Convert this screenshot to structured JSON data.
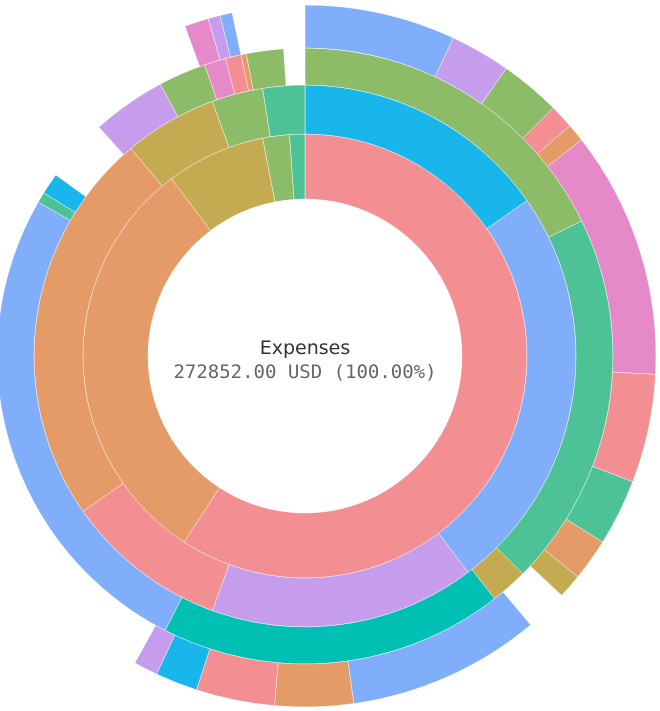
{
  "chart_data": {
    "type": "sunburst",
    "center": {
      "label": "Expenses",
      "value_text": "272852.00 USD (100.00%)"
    },
    "total": 272852.0,
    "unit": "USD",
    "rings": [
      {
        "level": 1,
        "segments": [
          {
            "start_deg": 0,
            "end_deg": 213,
            "color": "#f38e92"
          },
          {
            "start_deg": 213,
            "end_deg": 323,
            "color": "#e59b68"
          },
          {
            "start_deg": 323,
            "end_deg": 349,
            "color": "#c4aa51"
          },
          {
            "start_deg": 349,
            "end_deg": 356,
            "color": "#8dbc68"
          },
          {
            "start_deg": 356,
            "end_deg": 360,
            "color": "#4cc296"
          }
        ]
      },
      {
        "level": 2,
        "segments": [
          {
            "start_deg": 0,
            "end_deg": 55,
            "color": "#18b6ea"
          },
          {
            "start_deg": 55,
            "end_deg": 143,
            "color": "#81aefa"
          },
          {
            "start_deg": 143,
            "end_deg": 200,
            "color": "#c69ded"
          },
          {
            "start_deg": 200,
            "end_deg": 235,
            "color": "#f38e92"
          },
          {
            "start_deg": 235,
            "end_deg": 320,
            "color": "#e59b68"
          },
          {
            "start_deg": 320,
            "end_deg": 340,
            "color": "#c4aa51"
          },
          {
            "start_deg": 340,
            "end_deg": 351,
            "color": "#8dbc68"
          },
          {
            "start_deg": 351,
            "end_deg": 360,
            "color": "#4cc296"
          }
        ]
      },
      {
        "level": 3,
        "segments": [
          {
            "start_deg": 0,
            "end_deg": 64,
            "color": "#8dbc68"
          },
          {
            "start_deg": 64,
            "end_deg": 135,
            "color": "#4cc296"
          },
          {
            "start_deg": 135,
            "end_deg": 142,
            "color": "#c4aa51"
          },
          {
            "start_deg": 142,
            "end_deg": 207,
            "color": "#00c0b4"
          },
          {
            "start_deg": 207,
            "end_deg": 300,
            "color": "#81aefa"
          },
          {
            "start_deg": 300,
            "end_deg": 302,
            "color": "#4cc296"
          },
          {
            "start_deg": 302,
            "end_deg": 306,
            "color": "#18b6ea"
          },
          {
            "start_deg": 318,
            "end_deg": 332,
            "color": "#c69ded"
          },
          {
            "start_deg": 332,
            "end_deg": 341,
            "color": "#8dbc68"
          },
          {
            "start_deg": 341,
            "end_deg": 345,
            "color": "#e689c8"
          },
          {
            "start_deg": 345,
            "end_deg": 348,
            "color": "#f38e92"
          },
          {
            "start_deg": 348,
            "end_deg": 349,
            "color": "#e59b68"
          },
          {
            "start_deg": 349,
            "end_deg": 356,
            "color": "#8dbc68"
          }
        ]
      },
      {
        "level": 4,
        "segments": [
          {
            "start_deg": 0,
            "end_deg": 25,
            "color": "#81aefa"
          },
          {
            "start_deg": 25,
            "end_deg": 35,
            "color": "#c69ded"
          },
          {
            "start_deg": 35,
            "end_deg": 45,
            "color": "#8dbc68"
          },
          {
            "start_deg": 45,
            "end_deg": 49,
            "color": "#f38e92"
          },
          {
            "start_deg": 49,
            "end_deg": 52,
            "color": "#e59b68"
          },
          {
            "start_deg": 52,
            "end_deg": 93,
            "color": "#e689c8"
          },
          {
            "start_deg": 93,
            "end_deg": 111,
            "color": "#f38e92"
          },
          {
            "start_deg": 111,
            "end_deg": 122,
            "color": "#4cc296"
          },
          {
            "start_deg": 122,
            "end_deg": 129,
            "color": "#e59b68"
          },
          {
            "start_deg": 129,
            "end_deg": 133,
            "color": "#c4aa51"
          },
          {
            "start_deg": 140,
            "end_deg": 172,
            "color": "#81aefa"
          },
          {
            "start_deg": 172,
            "end_deg": 185,
            "color": "#e59b68"
          },
          {
            "start_deg": 185,
            "end_deg": 198,
            "color": "#f38e92"
          },
          {
            "start_deg": 198,
            "end_deg": 205,
            "color": "#18b6ea"
          },
          {
            "start_deg": 205,
            "end_deg": 209,
            "color": "#c69ded"
          },
          {
            "start_deg": 340,
            "end_deg": 344,
            "color": "#e689c8"
          },
          {
            "start_deg": 344,
            "end_deg": 346,
            "color": "#c69ded"
          },
          {
            "start_deg": 346,
            "end_deg": 348,
            "color": "#81aefa"
          }
        ]
      }
    ]
  }
}
